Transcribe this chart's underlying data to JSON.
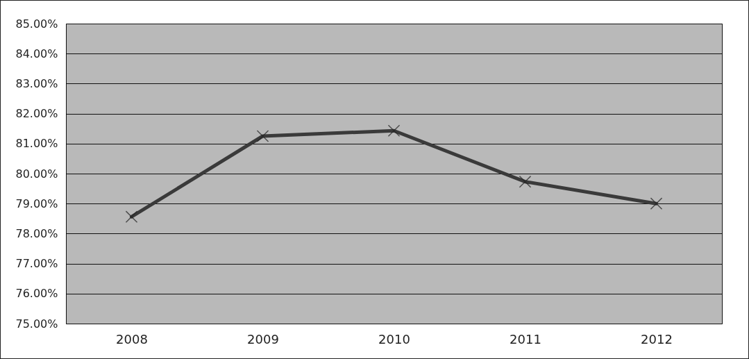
{
  "chart_data": {
    "type": "line",
    "categories": [
      "2008",
      "2009",
      "2010",
      "2011",
      "2012"
    ],
    "series": [
      {
        "color": "#3a3a3a",
        "values": [
          78.56,
          81.25,
          81.43,
          79.73,
          79.0
        ]
      }
    ],
    "ylim": [
      75,
      85
    ],
    "yticks": [
      {
        "value": 75,
        "label": "75.00%"
      },
      {
        "value": 76,
        "label": "76.00%"
      },
      {
        "value": 77,
        "label": "77.00%"
      },
      {
        "value": 78,
        "label": "78.00%"
      },
      {
        "value": 79,
        "label": "79.00%"
      },
      {
        "value": 80,
        "label": "80.00%"
      },
      {
        "value": 81,
        "label": "81.00%"
      },
      {
        "value": 82,
        "label": "82.00%"
      },
      {
        "value": 83,
        "label": "83.00%"
      },
      {
        "value": 84,
        "label": "84.00%"
      },
      {
        "value": 85,
        "label": "85.00%"
      }
    ],
    "grid": "y",
    "marker": "cross",
    "line_style": "solid"
  }
}
